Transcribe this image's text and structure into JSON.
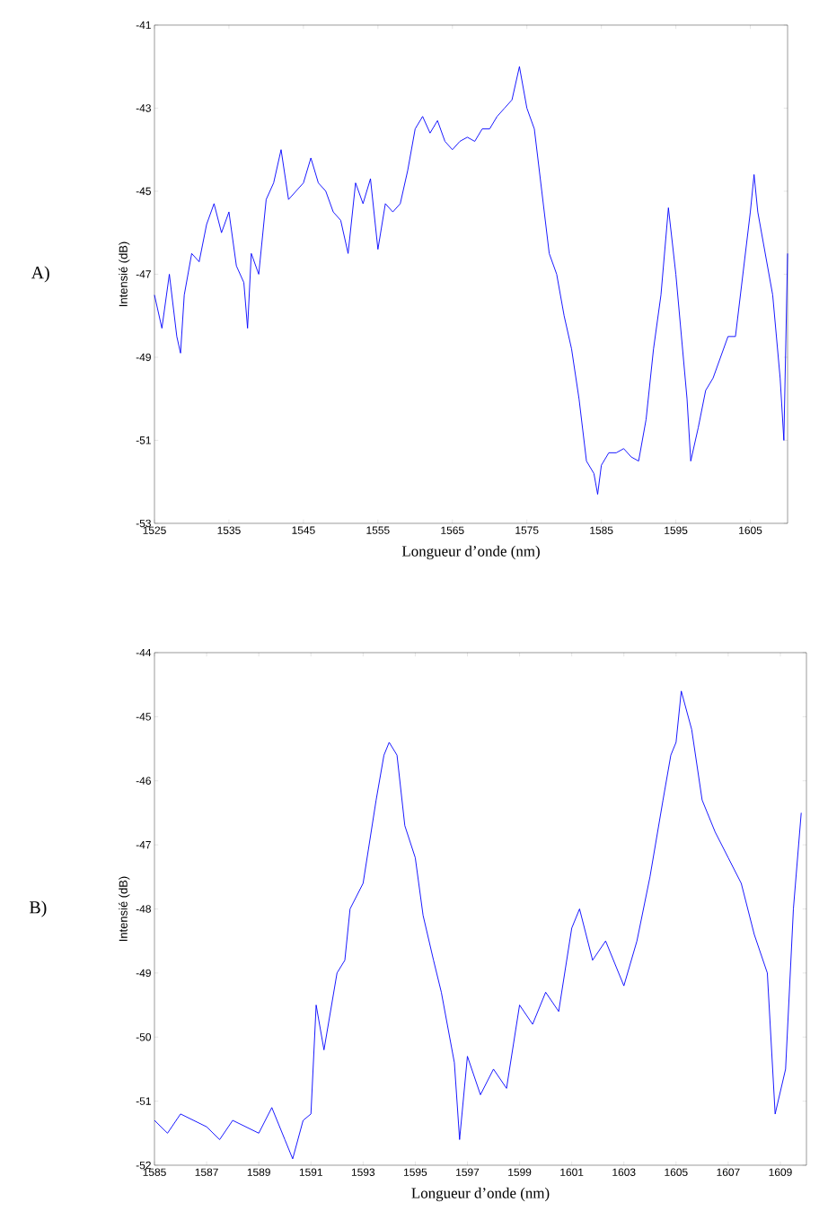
{
  "chart_data": [
    {
      "type": "line",
      "xlabel": "Longueur d’onde (nm)",
      "ylabel": "Intensié (dB)",
      "annotations": [
        "A)"
      ],
      "grid": false,
      "xlim": [
        1525,
        1610
      ],
      "xticks": [
        1525,
        1535,
        1545,
        1555,
        1565,
        1575,
        1585,
        1595,
        1605
      ],
      "ylim": [
        -53,
        -41
      ],
      "yticks": [
        -53,
        -51,
        -49,
        -47,
        -45,
        -43,
        -41
      ],
      "series": [
        {
          "color": "#0000ff",
          "x": [
            1525,
            1526,
            1527,
            1528,
            1528.5,
            1529,
            1530,
            1531,
            1532,
            1533,
            1534,
            1535,
            1536,
            1537,
            1537.5,
            1538,
            1539,
            1540,
            1541,
            1542,
            1543,
            1544,
            1545,
            1546,
            1547,
            1548,
            1549,
            1550,
            1551,
            1552,
            1553,
            1554,
            1555,
            1556,
            1557,
            1558,
            1559,
            1560,
            1561,
            1562,
            1563,
            1564,
            1565,
            1566,
            1567,
            1568,
            1569,
            1570,
            1571,
            1572,
            1573,
            1574,
            1575,
            1576,
            1577,
            1578,
            1579,
            1580,
            1581,
            1582,
            1583,
            1584,
            1584.5,
            1585,
            1586,
            1587,
            1588,
            1589,
            1590,
            1591,
            1592,
            1593,
            1594,
            1595,
            1596,
            1596.5,
            1597,
            1598,
            1599,
            1600,
            1601,
            1602,
            1603,
            1604,
            1605,
            1605.5,
            1606,
            1607,
            1608,
            1609,
            1609.5,
            1610
          ],
          "values": [
            -47.5,
            -48.3,
            -47,
            -48.5,
            -48.9,
            -47.5,
            -46.5,
            -46.7,
            -45.8,
            -45.3,
            -46,
            -45.5,
            -46.8,
            -47.2,
            -48.3,
            -46.5,
            -47,
            -45.2,
            -44.8,
            -44,
            -45.2,
            -45,
            -44.8,
            -44.2,
            -44.8,
            -45,
            -45.5,
            -45.7,
            -46.5,
            -44.8,
            -45.3,
            -44.7,
            -46.4,
            -45.3,
            -45.5,
            -45.3,
            -44.5,
            -43.5,
            -43.2,
            -43.6,
            -43.3,
            -43.8,
            -44,
            -43.8,
            -43.7,
            -43.8,
            -43.5,
            -43.5,
            -43.2,
            -43,
            -42.8,
            -42,
            -43,
            -43.5,
            -45,
            -46.5,
            -47,
            -48,
            -48.8,
            -50,
            -51.5,
            -51.8,
            -52.3,
            -51.6,
            -51.3,
            -51.3,
            -51.2,
            -51.4,
            -51.5,
            -50.5,
            -48.8,
            -47.5,
            -45.4,
            -47,
            -49,
            -50,
            -51.5,
            -50.7,
            -49.8,
            -49.5,
            -49,
            -48.5,
            -48.5,
            -47,
            -45.5,
            -44.6,
            -45.5,
            -46.5,
            -47.5,
            -49.5,
            -51,
            -46.5
          ]
        }
      ]
    },
    {
      "type": "line",
      "xlabel": "Longueur d’onde (nm)",
      "ylabel": "Intensié (dB)",
      "annotations": [
        "B)"
      ],
      "grid": false,
      "xlim": [
        1585,
        1610
      ],
      "xticks": [
        1585,
        1587,
        1589,
        1591,
        1593,
        1595,
        1597,
        1599,
        1601,
        1603,
        1605,
        1607,
        1609
      ],
      "ylim": [
        -52,
        -44
      ],
      "yticks": [
        -52,
        -51,
        -50,
        -49,
        -48,
        -47,
        -46,
        -45,
        -44
      ],
      "series": [
        {
          "color": "#0000ff",
          "x": [
            1585,
            1585.5,
            1586,
            1587,
            1587.5,
            1588,
            1589,
            1589.5,
            1590,
            1590.3,
            1590.7,
            1591,
            1591.2,
            1591.5,
            1592,
            1592.3,
            1592.5,
            1593,
            1593.5,
            1593.8,
            1594,
            1594.3,
            1594.6,
            1595,
            1595.3,
            1595.7,
            1596,
            1596.5,
            1596.7,
            1597,
            1597.5,
            1598,
            1598.5,
            1599,
            1599.5,
            1600,
            1600.5,
            1601,
            1601.3,
            1601.8,
            1602.3,
            1603,
            1603.5,
            1604,
            1604.5,
            1604.8,
            1605,
            1605.2,
            1605.6,
            1606,
            1606.5,
            1607,
            1607.5,
            1608,
            1608.5,
            1608.8,
            1609.2,
            1609.5,
            1609.8
          ],
          "values": [
            -51.3,
            -51.5,
            -51.2,
            -51.4,
            -51.6,
            -51.3,
            -51.5,
            -51.1,
            -51.6,
            -51.9,
            -51.3,
            -51.2,
            -49.5,
            -50.2,
            -49,
            -48.8,
            -48,
            -47.6,
            -46.3,
            -45.6,
            -45.4,
            -45.6,
            -46.7,
            -47.2,
            -48.1,
            -48.8,
            -49.3,
            -50.4,
            -51.6,
            -50.3,
            -50.9,
            -50.5,
            -50.8,
            -49.5,
            -49.8,
            -49.3,
            -49.6,
            -48.3,
            -48,
            -48.8,
            -48.5,
            -49.2,
            -48.5,
            -47.5,
            -46.3,
            -45.6,
            -45.4,
            -44.6,
            -45.2,
            -46.3,
            -46.8,
            -47.2,
            -47.6,
            -48.4,
            -49,
            -51.2,
            -50.5,
            -48,
            -46.5
          ]
        }
      ]
    }
  ]
}
